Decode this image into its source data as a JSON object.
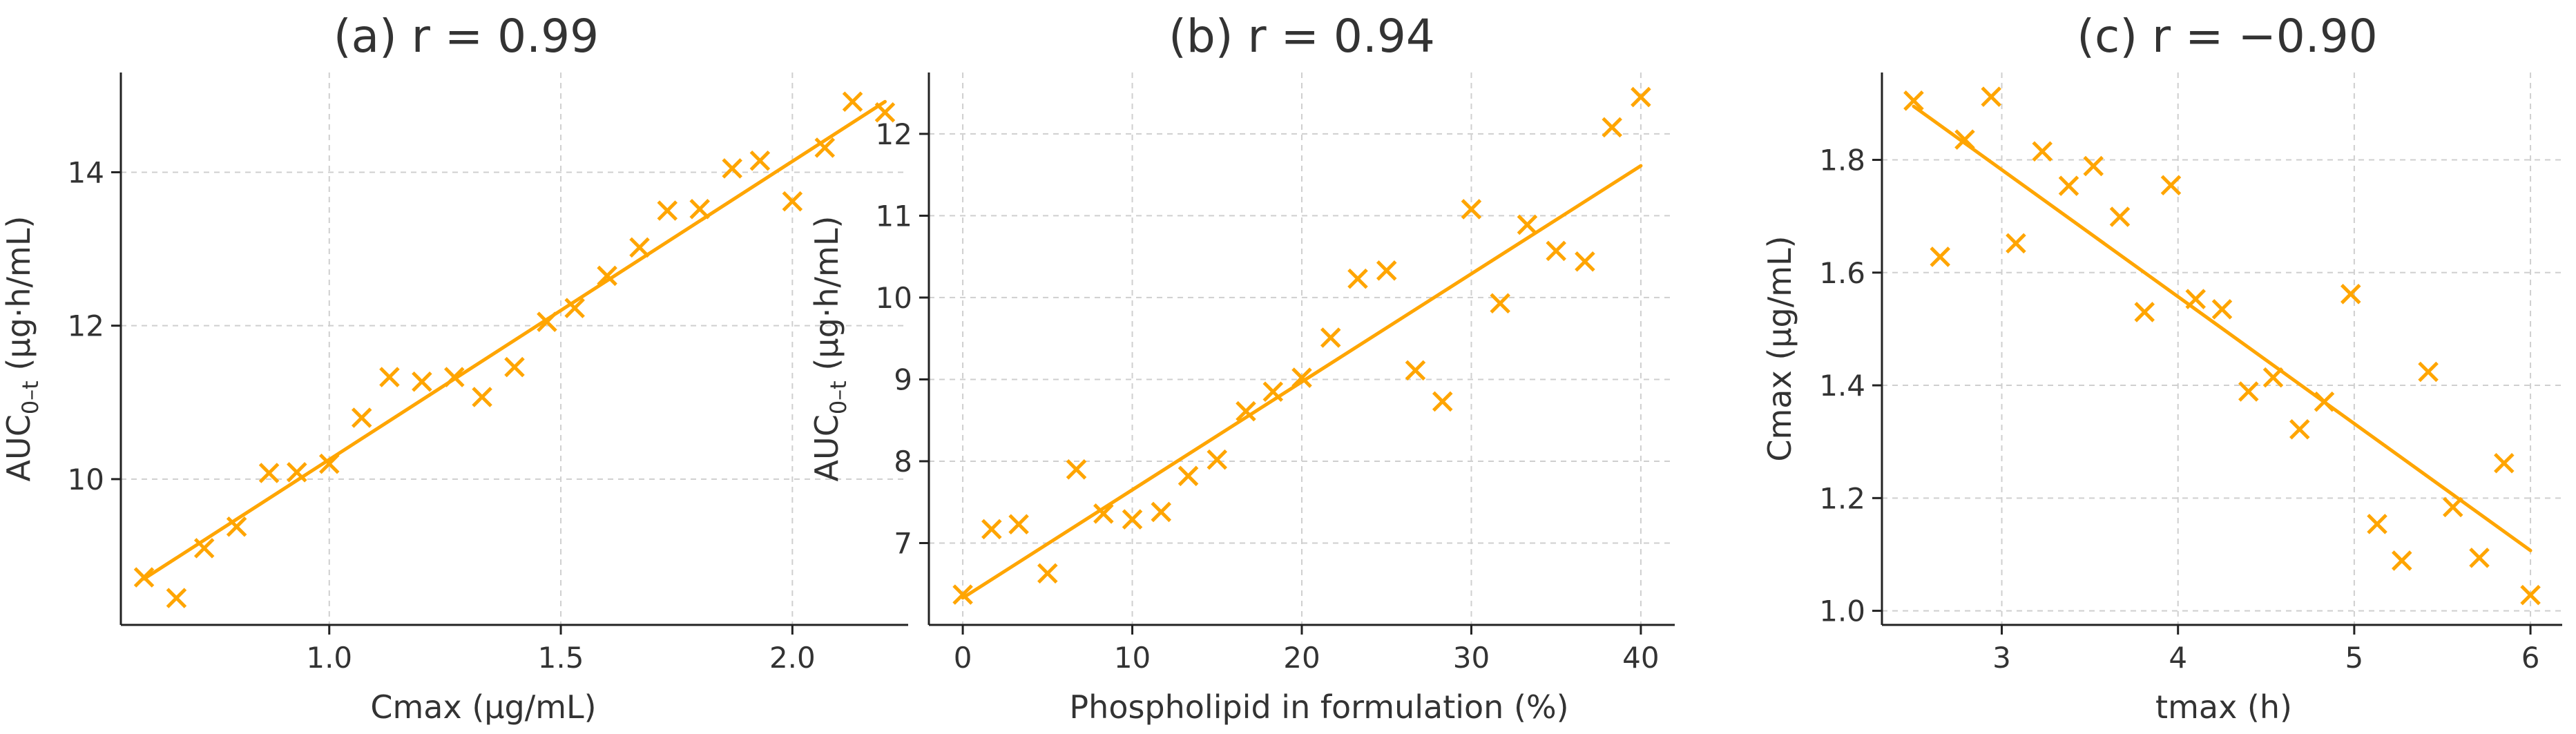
{
  "colors": {
    "accent": "#ffa500",
    "text": "#333333",
    "grid": "#cfcfcf",
    "axis": "#222222"
  },
  "chart_data": [
    {
      "type": "scatter",
      "title": "(a) r = 0.99",
      "xlabel": "Cmax (µg/mL)",
      "ylabel": {
        "main": "AUC",
        "sub": "0–t",
        "unit": " (µg·h/mL)"
      },
      "xlim": [
        0.55,
        2.25
      ],
      "ylim": [
        8.1,
        15.3
      ],
      "xticks": [
        1.0,
        1.5,
        2.0
      ],
      "xtick_labels": [
        "1.0",
        "1.5",
        "2.0"
      ],
      "yticks": [
        10,
        12,
        14
      ],
      "ytick_labels": [
        "10",
        "12",
        "14"
      ],
      "grid": true,
      "marker": "x",
      "points": [
        [
          0.6,
          8.72
        ],
        [
          0.67,
          8.45
        ],
        [
          0.73,
          9.1
        ],
        [
          0.8,
          9.38
        ],
        [
          0.87,
          10.08
        ],
        [
          0.93,
          10.09
        ],
        [
          1.0,
          10.2
        ],
        [
          1.07,
          10.8
        ],
        [
          1.13,
          11.33
        ],
        [
          1.2,
          11.27
        ],
        [
          1.27,
          11.33
        ],
        [
          1.33,
          11.07
        ],
        [
          1.4,
          11.46
        ],
        [
          1.47,
          12.05
        ],
        [
          1.53,
          12.23
        ],
        [
          1.6,
          12.65
        ],
        [
          1.67,
          13.02
        ],
        [
          1.73,
          13.5
        ],
        [
          1.8,
          13.52
        ],
        [
          1.87,
          14.05
        ],
        [
          1.93,
          14.15
        ],
        [
          2.0,
          13.62
        ],
        [
          2.07,
          14.32
        ],
        [
          2.13,
          14.92
        ],
        [
          2.2,
          14.78
        ]
      ],
      "fit_line": {
        "x": [
          0.6,
          2.2
        ],
        "y": [
          8.7,
          14.92
        ]
      }
    },
    {
      "type": "scatter",
      "title": "(b) r = 0.94",
      "xlabel": "Phospholipid in formulation (%)",
      "ylabel": {
        "main": "AUC",
        "sub": "0–t",
        "unit": " (µg·h/mL)"
      },
      "xlim": [
        -2,
        42
      ],
      "ylim": [
        6.0,
        12.75
      ],
      "xticks": [
        0,
        10,
        20,
        30,
        40
      ],
      "xtick_labels": [
        "0",
        "10",
        "20",
        "30",
        "40"
      ],
      "yticks": [
        7,
        8,
        9,
        10,
        11,
        12
      ],
      "ytick_labels": [
        "7",
        "8",
        "9",
        "10",
        "11",
        "12"
      ],
      "grid": true,
      "marker": "x",
      "points": [
        [
          0.0,
          6.37
        ],
        [
          1.7,
          7.17
        ],
        [
          3.3,
          7.23
        ],
        [
          5.0,
          6.63
        ],
        [
          6.7,
          7.9
        ],
        [
          8.3,
          7.36
        ],
        [
          10.0,
          7.29
        ],
        [
          11.7,
          7.38
        ],
        [
          13.3,
          7.82
        ],
        [
          15.0,
          8.02
        ],
        [
          16.7,
          8.61
        ],
        [
          18.3,
          8.85
        ],
        [
          20.0,
          9.02
        ],
        [
          21.7,
          9.51
        ],
        [
          23.3,
          10.23
        ],
        [
          25.0,
          10.33
        ],
        [
          26.7,
          9.11
        ],
        [
          28.3,
          8.73
        ],
        [
          30.0,
          11.08
        ],
        [
          31.7,
          9.93
        ],
        [
          33.3,
          10.89
        ],
        [
          35.0,
          10.57
        ],
        [
          36.7,
          10.44
        ],
        [
          38.3,
          12.08
        ],
        [
          40.0,
          12.45
        ]
      ],
      "fit_line": {
        "x": [
          0,
          40
        ],
        "y": [
          6.33,
          11.61
        ]
      }
    },
    {
      "type": "scatter",
      "title": "(c) r = −0.90",
      "xlabel": "tmax (h)",
      "ylabel": {
        "main": "Cmax",
        "sub": "",
        "unit": " (µg/mL)"
      },
      "xlim": [
        2.32,
        6.18
      ],
      "ylim": [
        0.975,
        1.955
      ],
      "xticks": [
        3,
        4,
        5,
        6
      ],
      "xtick_labels": [
        "3",
        "4",
        "5",
        "6"
      ],
      "yticks": [
        1.0,
        1.2,
        1.4,
        1.6,
        1.8
      ],
      "ytick_labels": [
        "1.0",
        "1.2",
        "1.4",
        "1.6",
        "1.8"
      ],
      "grid": true,
      "marker": "x",
      "points": [
        [
          2.5,
          1.905
        ],
        [
          2.65,
          1.628
        ],
        [
          2.79,
          1.836
        ],
        [
          2.94,
          1.912
        ],
        [
          3.08,
          1.652
        ],
        [
          3.23,
          1.815
        ],
        [
          3.38,
          1.754
        ],
        [
          3.52,
          1.789
        ],
        [
          3.67,
          1.699
        ],
        [
          3.81,
          1.53
        ],
        [
          3.96,
          1.755
        ],
        [
          4.1,
          1.553
        ],
        [
          4.25,
          1.535
        ],
        [
          4.4,
          1.389
        ],
        [
          4.54,
          1.414
        ],
        [
          4.69,
          1.322
        ],
        [
          4.83,
          1.371
        ],
        [
          4.98,
          1.562
        ],
        [
          5.13,
          1.154
        ],
        [
          5.27,
          1.089
        ],
        [
          5.42,
          1.424
        ],
        [
          5.56,
          1.184
        ],
        [
          5.71,
          1.094
        ],
        [
          5.85,
          1.262
        ],
        [
          6.0,
          1.028
        ]
      ],
      "fit_line": {
        "x": [
          2.5,
          6.0
        ],
        "y": [
          1.895,
          1.107
        ]
      }
    }
  ]
}
